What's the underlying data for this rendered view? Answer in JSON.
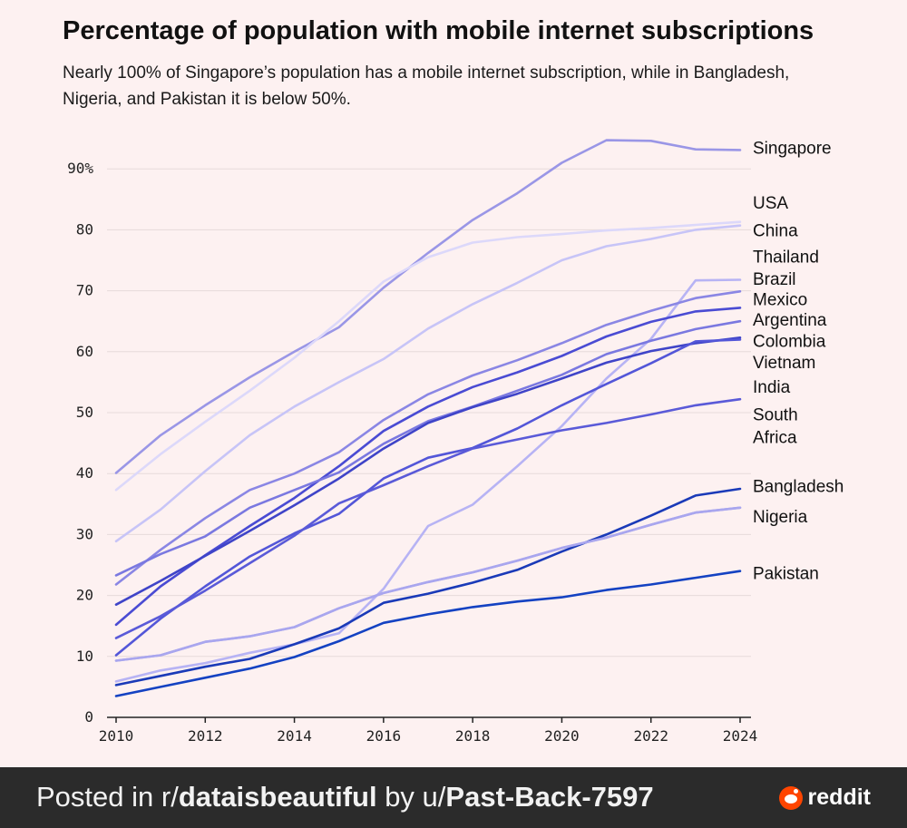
{
  "header": {
    "title": "Percentage of population with mobile internet subscriptions",
    "subtitle": "Nearly 100% of Singapore’s population has a mobile internet subscription, while in Bangladesh, Nigeria, and Pakistan it is below 50%."
  },
  "chart_data": {
    "type": "line",
    "title": "Percentage of population with mobile internet subscriptions",
    "x": [
      2010,
      2011,
      2012,
      2013,
      2014,
      2015,
      2016,
      2017,
      2018,
      2019,
      2020,
      2021,
      2022,
      2023,
      2024
    ],
    "xticks": [
      "2010",
      "2012",
      "2014",
      "2016",
      "2018",
      "2020",
      "2022",
      "2024"
    ],
    "yticks": [
      "0",
      "10",
      "20",
      "30",
      "40",
      "50",
      "60",
      "70",
      "80",
      "90%"
    ],
    "ylim": [
      0,
      95
    ],
    "xlabel": "",
    "ylabel": "",
    "grid": true,
    "series": [
      {
        "name": "Singapore",
        "color": "#9a96e6",
        "values": [
          40.1,
          46.3,
          51.2,
          55.8,
          60.0,
          64.0,
          70.5,
          76.2,
          81.6,
          86.0,
          91.0,
          94.7,
          94.6,
          93.2,
          93.1
        ]
      },
      {
        "name": "USA",
        "color": "#dcd8fa",
        "values": [
          37.3,
          43.2,
          48.5,
          53.6,
          59.0,
          65.0,
          71.5,
          75.5,
          77.9,
          78.8,
          79.3,
          79.9,
          80.3,
          80.8,
          81.3
        ]
      },
      {
        "name": "China",
        "color": "#c7c4f7",
        "values": [
          28.9,
          34.1,
          40.4,
          46.3,
          51.0,
          55.0,
          58.8,
          63.8,
          67.8,
          71.3,
          75.0,
          77.3,
          78.5,
          80.0,
          80.7
        ]
      },
      {
        "name": "Thailand",
        "color": "#b7b3f4",
        "values": [
          5.9,
          7.7,
          8.9,
          10.6,
          12.0,
          13.8,
          21.1,
          31.4,
          34.9,
          41.2,
          47.8,
          55.6,
          62.1,
          71.7,
          71.8
        ]
      },
      {
        "name": "Brazil",
        "color": "#8a86e4",
        "values": [
          21.8,
          27.5,
          32.7,
          37.3,
          40.0,
          43.5,
          48.8,
          53.0,
          56.1,
          58.6,
          61.4,
          64.4,
          66.7,
          68.8,
          69.9
        ]
      },
      {
        "name": "Mexico",
        "color": "#4a4bd3",
        "values": [
          15.2,
          21.5,
          26.6,
          31.4,
          36.0,
          41.2,
          47.0,
          51.0,
          54.2,
          56.6,
          59.3,
          62.5,
          64.9,
          66.6,
          67.2
        ]
      },
      {
        "name": "Argentina",
        "color": "#7a78e0",
        "values": [
          23.3,
          26.8,
          29.7,
          34.4,
          37.3,
          40.2,
          44.9,
          48.6,
          51.0,
          53.6,
          56.2,
          59.6,
          61.8,
          63.7,
          65.0
        ]
      },
      {
        "name": "Colombia",
        "color": "#3f44c8",
        "values": [
          18.5,
          22.4,
          26.5,
          30.6,
          34.8,
          39.2,
          44.1,
          48.3,
          50.9,
          53.1,
          55.6,
          58.2,
          60.1,
          61.4,
          62.3
        ]
      },
      {
        "name": "Vietnam",
        "color": "#5356d8",
        "values": [
          10.2,
          16.2,
          21.5,
          26.4,
          30.2,
          33.4,
          39.2,
          42.6,
          44.2,
          47.4,
          51.2,
          54.7,
          58.1,
          61.7,
          62.0
        ]
      },
      {
        "name": "India",
        "color": "#a8a5ef",
        "values": [
          9.3,
          10.2,
          12.4,
          13.3,
          14.8,
          17.9,
          20.4,
          22.2,
          23.8,
          25.7,
          27.8,
          29.5,
          31.6,
          33.6,
          34.4
        ]
      },
      {
        "name": "South Africa",
        "color": "#5a5ad8",
        "values": [
          13.0,
          16.6,
          20.8,
          25.3,
          29.8,
          35.1,
          38.1,
          41.2,
          44.1,
          45.6,
          47.1,
          48.3,
          49.7,
          51.2,
          52.2
        ]
      },
      {
        "name": "Bangladesh",
        "color": "#1a3ab8",
        "values": [
          5.3,
          6.8,
          8.3,
          9.6,
          12.0,
          14.6,
          18.8,
          20.3,
          22.1,
          24.2,
          27.2,
          30.0,
          33.1,
          36.4,
          37.5
        ]
      },
      {
        "name": "Nigeria",
        "color": "#a9a6ee",
        "values": [
          9.3,
          10.2,
          12.4,
          13.3,
          14.8,
          17.9,
          20.4,
          22.2,
          23.8,
          25.7,
          27.8,
          29.5,
          31.6,
          33.6,
          34.4
        ]
      },
      {
        "name": "Pakistan",
        "color": "#1442c2",
        "values": [
          3.5,
          5.0,
          6.5,
          8.0,
          9.9,
          12.5,
          15.5,
          16.9,
          18.1,
          19.0,
          19.7,
          20.9,
          21.8,
          22.9,
          24.0
        ]
      }
    ],
    "end_labels": [
      {
        "lines": [
          "Singapore"
        ],
        "at": 93.5
      },
      {
        "lines": [
          "USA"
        ],
        "at": 84.5
      },
      {
        "lines": [
          "China"
        ],
        "at": 80.0
      },
      {
        "lines": [
          "Thailand"
        ],
        "at": 75.7
      },
      {
        "lines": [
          "Brazil"
        ],
        "at": 72.0
      },
      {
        "lines": [
          "Mexico"
        ],
        "at": 68.7
      },
      {
        "lines": [
          "Argentina"
        ],
        "at": 65.3
      },
      {
        "lines": [
          "Colombia"
        ],
        "at": 61.8
      },
      {
        "lines": [
          "Vietnam"
        ],
        "at": 58.3
      },
      {
        "lines": [
          "India"
        ],
        "at": 54.3
      },
      {
        "lines": [
          "South",
          "Africa"
        ],
        "at": 47.9
      },
      {
        "lines": [
          "Bangladesh"
        ],
        "at": 38.0
      },
      {
        "lines": [
          "Nigeria"
        ],
        "at": 33.0
      },
      {
        "lines": [
          "Pakistan"
        ],
        "at": 23.7
      }
    ]
  },
  "footer": {
    "prefix": "Posted in r/",
    "subreddit": "dataisbeautiful",
    "by": " by u/",
    "user": "Past-Back-7597",
    "brand": "reddit"
  }
}
